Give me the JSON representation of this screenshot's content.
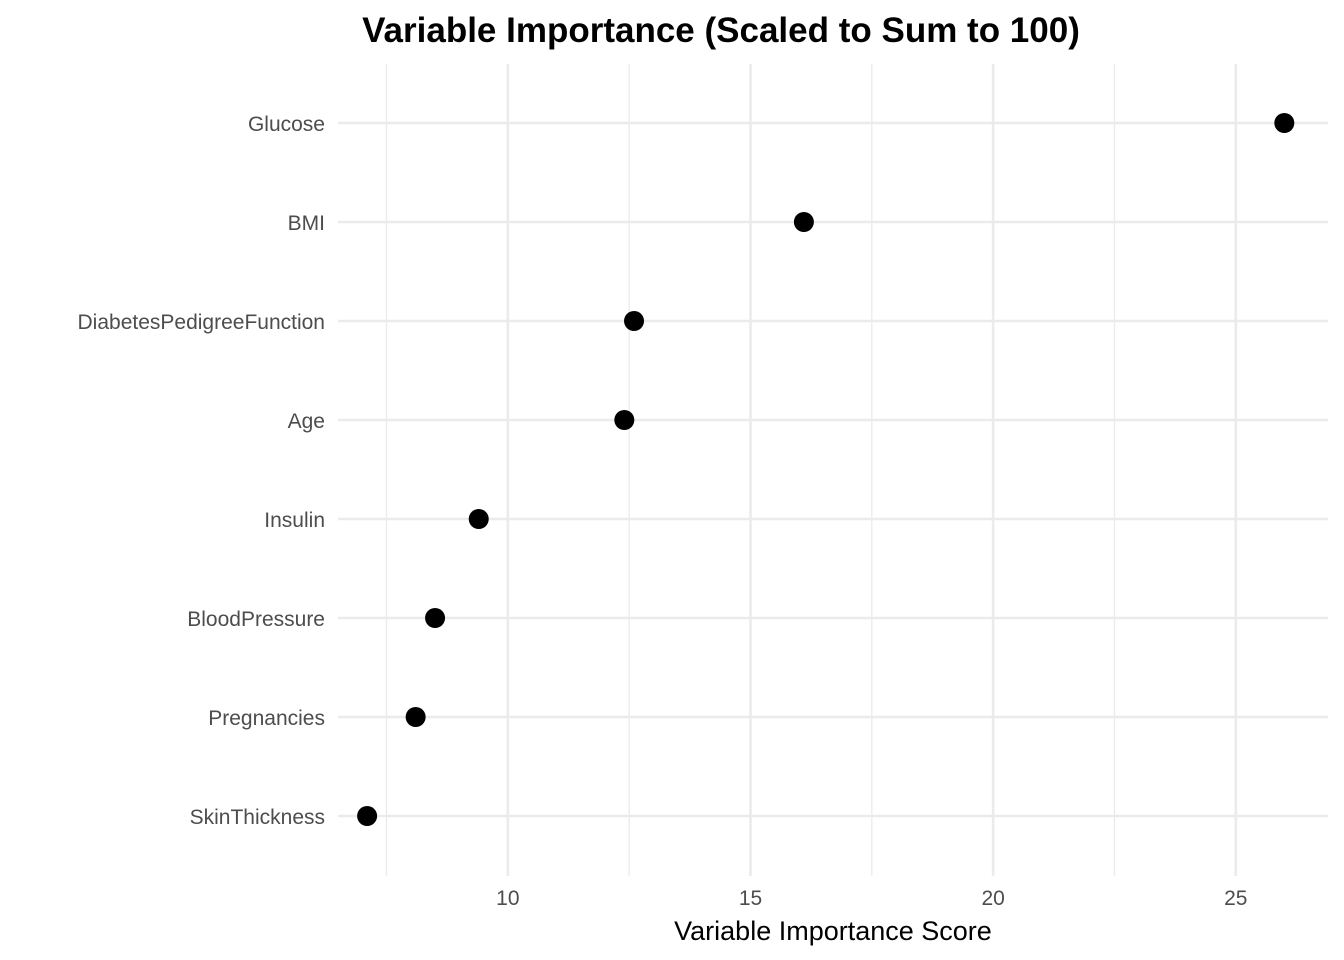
{
  "chart_data": {
    "type": "scatter",
    "title": "Variable Importance (Scaled to Sum to 100)",
    "xlabel": "Variable Importance Score",
    "ylabel": "",
    "xlim": [
      6.5,
      26.9
    ],
    "x_ticks": [
      10,
      15,
      20,
      25
    ],
    "x_minor_ticks": [
      7.5,
      12.5,
      17.5,
      22.5
    ],
    "grid": true,
    "point_color": "#000000",
    "grid_color": "#ebebeb",
    "categories": [
      "Glucose",
      "BMI",
      "DiabetesPedigreeFunction",
      "Age",
      "Insulin",
      "BloodPressure",
      "Pregnancies",
      "SkinThickness"
    ],
    "values": [
      26.0,
      16.1,
      12.6,
      12.4,
      9.4,
      8.5,
      8.1,
      7.1
    ]
  }
}
